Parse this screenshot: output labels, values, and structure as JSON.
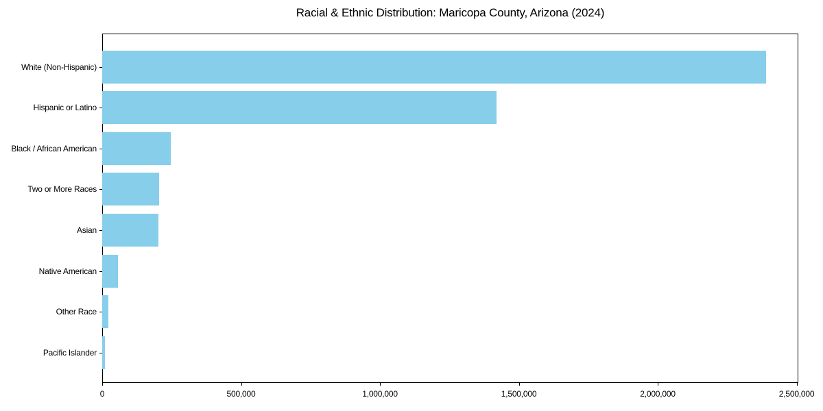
{
  "chart_data": {
    "type": "bar",
    "orientation": "horizontal",
    "title": "Racial & Ethnic Distribution: Maricopa County, Arizona (2024)",
    "categories": [
      "White (Non-Hispanic)",
      "Hispanic or Latino",
      "Black / African American",
      "Two or More Races",
      "Asian",
      "Native American",
      "Other Race",
      "Pacific Islander"
    ],
    "values": [
      2390000,
      1420000,
      247000,
      205000,
      202000,
      56000,
      22000,
      11000
    ],
    "bar_color": "#87CEEB",
    "text_color": "#000000",
    "spine_color": "#000000",
    "background_color": "#ffffff",
    "xlabel": "",
    "ylabel": "",
    "xlim": [
      0,
      2506000
    ],
    "x_ticks": [
      0,
      500000,
      1000000,
      1500000,
      2000000,
      2500000
    ],
    "x_tick_labels": [
      "0",
      "500,000",
      "1,000,000",
      "1,500,000",
      "2,000,000",
      "2,500,000"
    ],
    "grid": false,
    "legend": "none"
  }
}
